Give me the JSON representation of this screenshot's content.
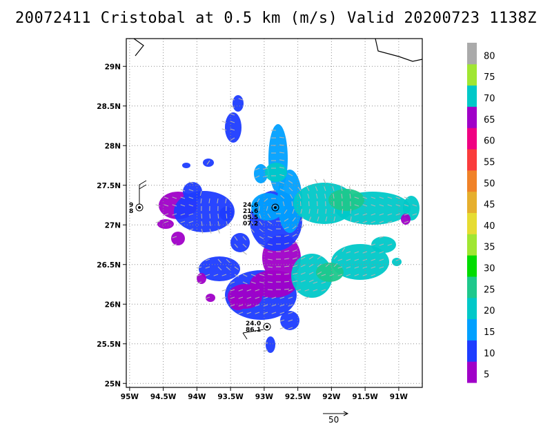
{
  "title": "20072411 Cristobal at 0.5 km (m/s) Valid 20200723 1138Z",
  "chart_data": {
    "type": "heatmap",
    "x_ticks": [
      "95W",
      "94.5W",
      "94W",
      "93.5W",
      "93W",
      "92.5W",
      "92W",
      "91.5W",
      "91W"
    ],
    "y_ticks": [
      "25N",
      "25.5N",
      "26N",
      "26.5N",
      "27N",
      "27.5N",
      "28N",
      "28.5N",
      "29N"
    ],
    "xlim": [
      -95.05,
      -90.65
    ],
    "ylim": [
      24.95,
      29.35
    ],
    "grid": true,
    "colorbar": {
      "levels": [
        5,
        10,
        15,
        20,
        25,
        30,
        35,
        40,
        45,
        50,
        55,
        60,
        65,
        70,
        75,
        80
      ],
      "colors": [
        "#a000c8",
        "#1e3cff",
        "#00a0ff",
        "#00c8c8",
        "#1ec88c",
        "#00dc00",
        "#a0e632",
        "#e6dc32",
        "#e6af2d",
        "#f08228",
        "#fa3c3c",
        "#f00082",
        "#a000c8",
        "#00c8c8",
        "#a0e632",
        "#aaaaaa"
      ],
      "labels": [
        "5",
        "10",
        "15",
        "20",
        "25",
        "30",
        "35",
        "40",
        "45",
        "50",
        "55",
        "60",
        "65",
        "70",
        "75",
        "80"
      ]
    },
    "reference_vector": {
      "label": "50",
      "value": 50
    },
    "station_labels": [
      {
        "lines": [
          "9",
          "8"
        ]
      },
      {
        "lines": [
          "24.6",
          "21.6",
          "05.5",
          "07.2"
        ]
      },
      {
        "lines": [
          "24.0",
          "86.1"
        ]
      }
    ],
    "wind_regions": [
      {
        "lon": -94.6,
        "lat": 27.2,
        "range": "5-10"
      },
      {
        "lon": -93.9,
        "lat": 27.1,
        "range": "10-15"
      },
      {
        "lon": -93.1,
        "lat": 26.05,
        "range": "10-15"
      },
      {
        "lon": -92.7,
        "lat": 26.7,
        "range": "5-10"
      },
      {
        "lon": -92.1,
        "lat": 27.1,
        "range": "20-25"
      },
      {
        "lon": -92.0,
        "lat": 26.55,
        "range": "20-25"
      },
      {
        "lon": -92.8,
        "lat": 27.9,
        "range": "15-20"
      }
    ]
  }
}
